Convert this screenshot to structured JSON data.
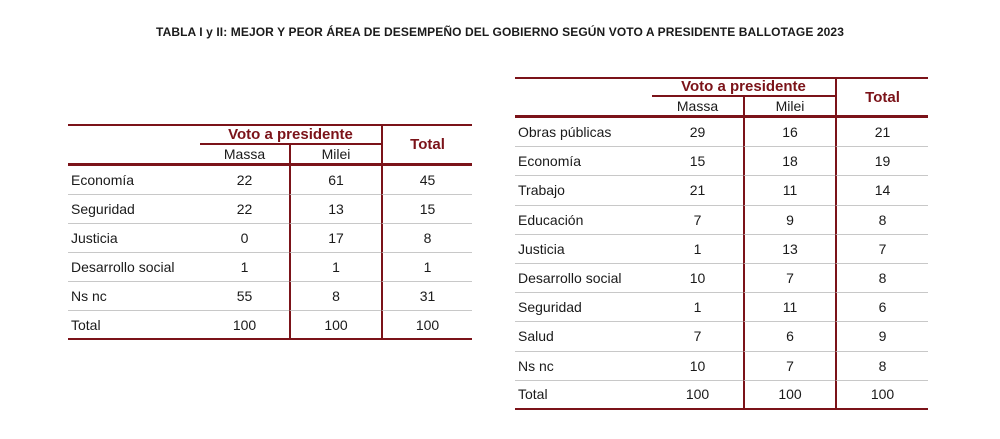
{
  "title": "TABLA I y II: MEJOR Y PEOR ÁREA DE DESEMPEÑO DEL GOBIERNO SEGÚN VOTO A PRESIDENTE BALLOTAGE 2023",
  "colors": {
    "accent": "#7b1319",
    "row_rule": "#c8c8c8"
  },
  "tables": [
    {
      "group_header": "Voto a presidente",
      "total_header": "Total",
      "columns": [
        "Massa",
        "Milei"
      ],
      "rows": [
        {
          "label": "Economía",
          "values": [
            "22",
            "61",
            "45"
          ]
        },
        {
          "label": "Seguridad",
          "values": [
            "22",
            "13",
            "15"
          ]
        },
        {
          "label": "Justicia",
          "values": [
            "0",
            "17",
            "8"
          ]
        },
        {
          "label": "Desarrollo social",
          "values": [
            "1",
            "1",
            "1"
          ]
        },
        {
          "label": "Ns nc",
          "values": [
            "55",
            "8",
            "31"
          ]
        },
        {
          "label": "Total",
          "values": [
            "100",
            "100",
            "100"
          ]
        }
      ]
    },
    {
      "group_header": "Voto a presidente",
      "total_header": "Total",
      "columns": [
        "Massa",
        "Milei"
      ],
      "rows": [
        {
          "label": "Obras públicas",
          "values": [
            "29",
            "16",
            "21"
          ]
        },
        {
          "label": "Economía",
          "values": [
            "15",
            "18",
            "19"
          ]
        },
        {
          "label": "Trabajo",
          "values": [
            "21",
            "11",
            "14"
          ]
        },
        {
          "label": "Educación",
          "values": [
            "7",
            "9",
            "8"
          ]
        },
        {
          "label": "Justicia",
          "values": [
            "1",
            "13",
            "7"
          ]
        },
        {
          "label": "Desarrollo social",
          "values": [
            "10",
            "7",
            "8"
          ]
        },
        {
          "label": "Seguridad",
          "values": [
            "1",
            "11",
            "6"
          ]
        },
        {
          "label": "Salud",
          "values": [
            "7",
            "6",
            "9"
          ]
        },
        {
          "label": "Ns nc",
          "values": [
            "10",
            "7",
            "8"
          ]
        },
        {
          "label": "Total",
          "values": [
            "100",
            "100",
            "100"
          ]
        }
      ]
    }
  ]
}
